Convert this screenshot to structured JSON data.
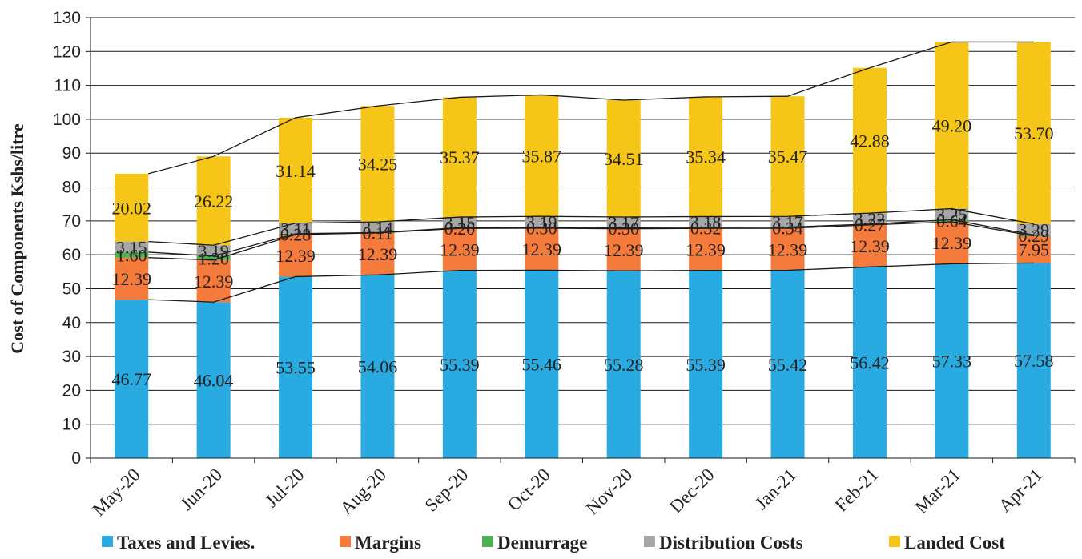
{
  "chart_data": {
    "type": "bar",
    "stacked": true,
    "ylabel": "Cost of Components Kshs/litre",
    "xlabel": "",
    "ylim": [
      0,
      130
    ],
    "yticks": [
      0,
      10,
      20,
      30,
      40,
      50,
      60,
      70,
      80,
      90,
      100,
      110,
      120,
      130
    ],
    "grid": true,
    "legend_position": "bottom",
    "categories": [
      "May-20",
      "Jun-20",
      "Jul-20",
      "Aug-20",
      "Sep-20",
      "Oct-20",
      "Nov-20",
      "Dec-20",
      "Jan-21",
      "Feb-21",
      "Mar-21",
      "Apr-21"
    ],
    "series": [
      {
        "name": "Taxes and Levies.",
        "color": "#29ABE2",
        "values": [
          46.77,
          46.04,
          53.55,
          54.06,
          55.39,
          55.46,
          55.28,
          55.39,
          55.42,
          56.42,
          57.33,
          57.58
        ]
      },
      {
        "name": "Margins",
        "color": "#F47B3B",
        "values": [
          12.39,
          12.39,
          12.39,
          12.39,
          12.39,
          12.39,
          12.39,
          12.39,
          12.39,
          12.39,
          12.39,
          7.95
        ]
      },
      {
        "name": "Demurrage",
        "color": "#4CAF50",
        "values": [
          1.6,
          1.2,
          0.28,
          0.11,
          0.2,
          0.3,
          0.3,
          0.32,
          0.34,
          0.27,
          0.64,
          0.29
        ]
      },
      {
        "name": "Distribution Costs",
        "color": "#A6A6A6",
        "values": [
          3.15,
          3.19,
          3.11,
          3.14,
          3.15,
          3.19,
          3.17,
          3.18,
          3.17,
          3.22,
          3.25,
          3.29
        ]
      },
      {
        "name": "Landed Cost",
        "color": "#F5C518",
        "values": [
          20.02,
          26.22,
          31.14,
          34.25,
          35.37,
          35.87,
          34.51,
          35.34,
          35.47,
          42.88,
          49.2,
          53.7
        ]
      }
    ]
  }
}
